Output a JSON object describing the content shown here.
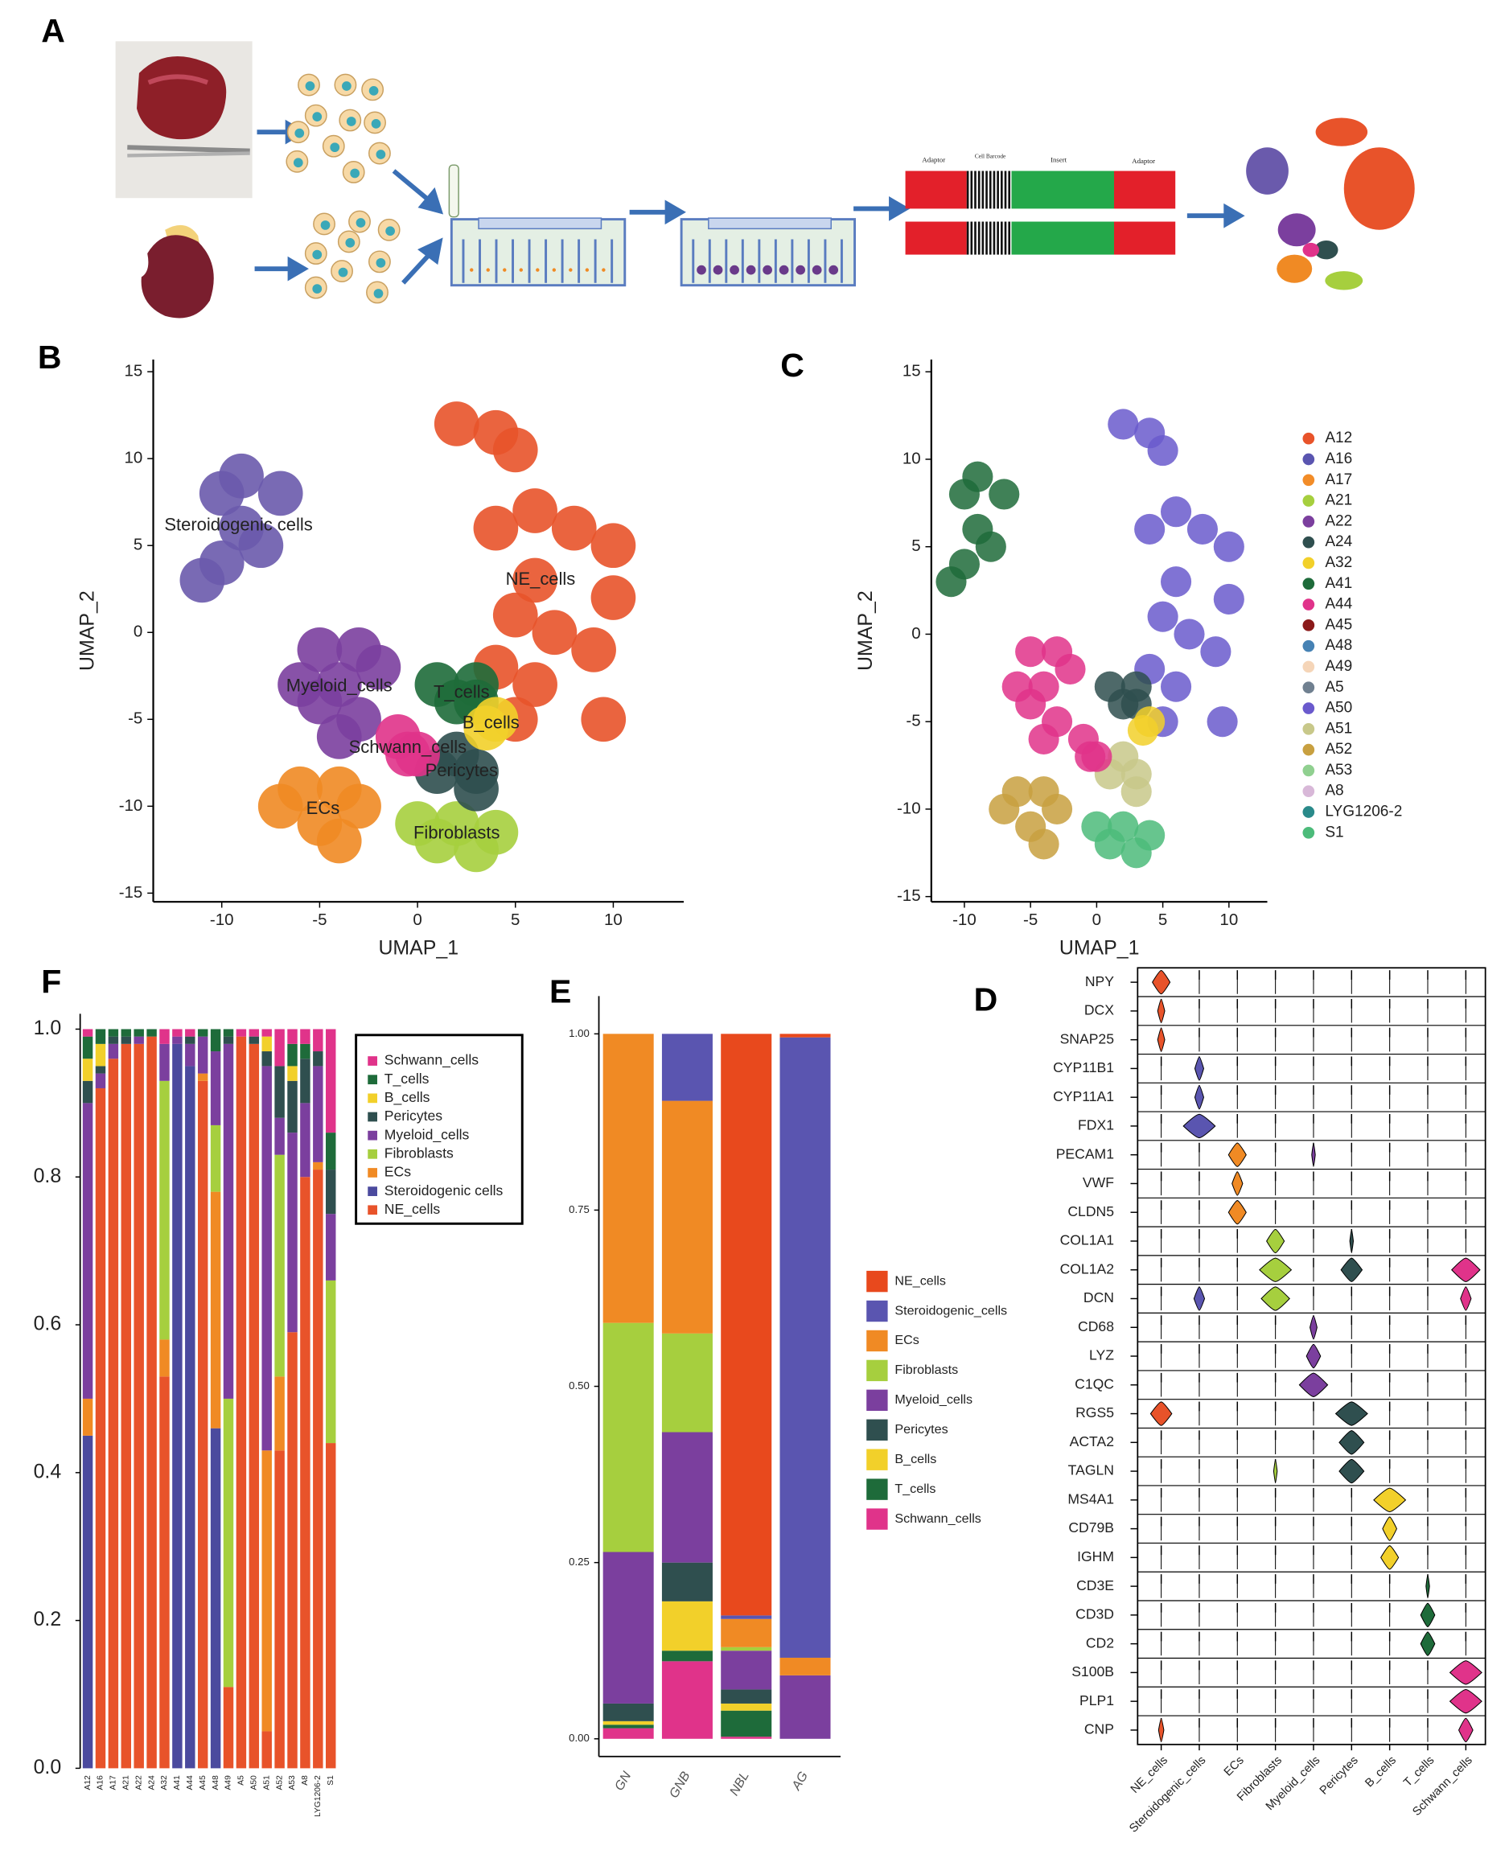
{
  "panel_labels": {
    "A": "A",
    "B": "B",
    "C": "C",
    "D": "D",
    "E": "E",
    "F": "F"
  },
  "schematic": {
    "labels": [
      "Adaptor",
      "Cell Barcode",
      "Insert",
      "Adaptor"
    ]
  },
  "chart_data": [
    {
      "type": "scatter",
      "xlabel": "UMAP_1",
      "ylabel": "UMAP_2",
      "xlim": [
        -13.5,
        13.6
      ],
      "ylim": [
        -15.5,
        15.7
      ],
      "xticks": [
        -10,
        -5,
        0,
        5,
        10
      ],
      "yticks": [
        -15,
        -10,
        -5,
        0,
        5,
        10,
        15
      ],
      "series": [
        {
          "name": "NE_cells",
          "color": "#e8532a",
          "x": [
            2,
            4,
            5,
            4,
            6,
            8,
            10,
            6,
            5,
            7,
            4,
            6,
            9,
            10,
            5,
            9.5
          ],
          "y": [
            12,
            11.5,
            10.5,
            6,
            7,
            6,
            5,
            3,
            1,
            0,
            -2,
            -3,
            -1,
            2,
            -5,
            -5
          ]
        },
        {
          "name": "Steroidogenic cells",
          "color": "#6a5aac",
          "x": [
            -10,
            -9,
            -10,
            -11,
            -8,
            -7,
            -9
          ],
          "y": [
            8,
            6,
            4,
            3,
            5,
            8,
            9
          ]
        },
        {
          "name": "Myeloid_cells",
          "color": "#7b3f9e",
          "x": [
            -5,
            -3,
            -2,
            -4,
            -5,
            -3,
            -4,
            -6
          ],
          "y": [
            -1,
            -1,
            -2,
            -3,
            -4,
            -5,
            -6,
            -3
          ]
        },
        {
          "name": "ECs",
          "color": "#f08a24",
          "x": [
            -6,
            -4,
            -3,
            -5,
            -7,
            -4
          ],
          "y": [
            -9,
            -9,
            -10,
            -11,
            -10,
            -12
          ]
        },
        {
          "name": "Fibroblasts",
          "color": "#a6cf3e",
          "x": [
            0,
            2,
            4,
            3,
            1
          ],
          "y": [
            -11,
            -11,
            -11.5,
            -12.5,
            -12
          ]
        },
        {
          "name": "Pericytes",
          "color": "#2f4f4f",
          "x": [
            2,
            3,
            3,
            1
          ],
          "y": [
            -7,
            -8,
            -9,
            -8
          ]
        },
        {
          "name": "T_cells",
          "color": "#1e6b3a",
          "x": [
            1,
            2,
            3,
            3
          ],
          "y": [
            -3,
            -4,
            -3,
            -4
          ]
        },
        {
          "name": "B_cells",
          "color": "#f2d02a",
          "x": [
            4,
            3.5
          ],
          "y": [
            -5,
            -5.5
          ]
        },
        {
          "name": "Schwann_cells",
          "color": "#e0338a",
          "x": [
            -1,
            0,
            -0.5
          ],
          "y": [
            -6,
            -7,
            -7
          ]
        }
      ]
    },
    {
      "type": "scatter",
      "xlabel": "UMAP_1",
      "ylabel": "UMAP_2",
      "xlim": [
        -12.5,
        12.9
      ],
      "ylim": [
        -15.3,
        15.7
      ],
      "xticks": [
        -10,
        -5,
        0,
        5,
        10
      ],
      "yticks": [
        -15,
        -10,
        -5,
        0,
        5,
        10,
        15
      ],
      "legend": "right",
      "series": [
        {
          "name": "A12",
          "color": "#e8532a"
        },
        {
          "name": "A16",
          "color": "#5a55b0"
        },
        {
          "name": "A17",
          "color": "#f28c28"
        },
        {
          "name": "A21",
          "color": "#a6cf3e"
        },
        {
          "name": "A22",
          "color": "#7b3f9e"
        },
        {
          "name": "A24",
          "color": "#2f4f4f"
        },
        {
          "name": "A32",
          "color": "#f2d02a"
        },
        {
          "name": "A41",
          "color": "#1e6b3a"
        },
        {
          "name": "A44",
          "color": "#e0338a"
        },
        {
          "name": "A45",
          "color": "#8b1a1a"
        },
        {
          "name": "A48",
          "color": "#4682b4"
        },
        {
          "name": "A49",
          "color": "#f5d5b8"
        },
        {
          "name": "A5",
          "color": "#708090"
        },
        {
          "name": "A50",
          "color": "#6a5acd"
        },
        {
          "name": "A51",
          "color": "#c8c88a"
        },
        {
          "name": "A52",
          "color": "#c8a040"
        },
        {
          "name": "A53",
          "color": "#90d090"
        },
        {
          "name": "A8",
          "color": "#d8b8d8"
        },
        {
          "name": "LYG1206-2",
          "color": "#2a8a8a"
        },
        {
          "name": "S1",
          "color": "#4cbb7a"
        }
      ]
    },
    {
      "type": "stacked_bar",
      "categories": [
        "A12",
        "A16",
        "A17",
        "A21",
        "A22",
        "A24",
        "A32",
        "A41",
        "A44",
        "A45",
        "A48",
        "A49",
        "A5",
        "A50",
        "A51",
        "A52",
        "A53",
        "A8",
        "LYG1206-2",
        "S1"
      ],
      "ylim": [
        0,
        1
      ],
      "yticks": [
        {
          "value": 0,
          "label": "0.0"
        },
        0.2,
        0.4,
        0.6,
        0.8,
        {
          "value": 1,
          "label": "1.0"
        }
      ],
      "legend": "right",
      "series": [
        {
          "name": "NE_cells",
          "color": "#e8532a",
          "values": [
            0,
            0.92,
            0.96,
            0.98,
            0.98,
            0.99,
            0.53,
            0,
            0,
            0.93,
            0,
            0.11,
            0.99,
            0.98,
            0.05,
            0.43,
            0.59,
            0.8,
            0.81,
            0.44
          ]
        },
        {
          "name": "Steroidogenic cells",
          "color": "#4b4a9e",
          "values": [
            0.45,
            0,
            0,
            0,
            0,
            0,
            0,
            0.98,
            0.95,
            0,
            0.46,
            0,
            0,
            0,
            0,
            0,
            0,
            0,
            0,
            0
          ]
        },
        {
          "name": "ECs",
          "color": "#f08a24",
          "values": [
            0.05,
            0,
            0,
            0,
            0,
            0,
            0.05,
            0,
            0,
            0.01,
            0.32,
            0,
            0,
            0,
            0.38,
            0.1,
            0,
            0,
            0.01,
            0
          ]
        },
        {
          "name": "Fibroblasts",
          "color": "#a6cf3e",
          "values": [
            0,
            0,
            0,
            0,
            0,
            0,
            0.35,
            0,
            0,
            0,
            0.09,
            0.39,
            0,
            0,
            0,
            0.3,
            0,
            0,
            0,
            0.22
          ]
        },
        {
          "name": "Myeloid_cells",
          "color": "#7b3f9e",
          "values": [
            0.4,
            0.02,
            0.02,
            0,
            0.01,
            0,
            0.05,
            0.01,
            0.03,
            0.05,
            0.1,
            0.48,
            0,
            0,
            0.52,
            0.05,
            0.27,
            0.1,
            0.13,
            0.09
          ]
        },
        {
          "name": "Pericytes",
          "color": "#2f4f4f",
          "values": [
            0.03,
            0.01,
            0.01,
            0.01,
            0,
            0,
            0,
            0,
            0.01,
            0,
            0,
            0.01,
            0,
            0.01,
            0.02,
            0.07,
            0.07,
            0.06,
            0.02,
            0.06
          ]
        },
        {
          "name": "B_cells",
          "color": "#f2d02a",
          "values": [
            0.03,
            0.03,
            0,
            0,
            0,
            0,
            0,
            0,
            0,
            0,
            0,
            0,
            0,
            0,
            0.02,
            0,
            0.02,
            0,
            0,
            0
          ]
        },
        {
          "name": "T_cells",
          "color": "#1e6b3a",
          "values": [
            0.03,
            0.02,
            0.01,
            0.01,
            0.01,
            0.01,
            0,
            0,
            0,
            0.01,
            0.03,
            0.01,
            0,
            0,
            0,
            0,
            0.03,
            0.02,
            0,
            0.05
          ]
        },
        {
          "name": "Schwann_cells",
          "color": "#e0338a",
          "values": [
            0.01,
            0,
            0,
            0,
            0,
            0,
            0.02,
            0.01,
            0.01,
            0,
            0,
            0,
            0.01,
            0.01,
            0.01,
            0.05,
            0.02,
            0.02,
            0.03,
            0.14
          ]
        }
      ]
    },
    {
      "type": "stacked_bar",
      "categories": [
        "GN",
        "GNB",
        "NBL",
        "AG"
      ],
      "ylim": [
        0,
        1
      ],
      "yticks": [
        {
          "value": 0,
          "label": "0.00"
        },
        {
          "value": 0.25,
          "label": "0.25"
        },
        {
          "value": 0.5,
          "label": "0.50"
        },
        {
          "value": 0.75,
          "label": "0.75"
        },
        {
          "value": 1,
          "label": "1.00"
        }
      ],
      "legend": "right",
      "series": [
        {
          "name": "Schwann_cells",
          "color": "#e0338a",
          "values": [
            0.015,
            0.11,
            0.003,
            0
          ]
        },
        {
          "name": "T_cells",
          "color": "#1e6b3a",
          "values": [
            0.005,
            0.015,
            0.037,
            0
          ]
        },
        {
          "name": "B_cells",
          "color": "#f2d02a",
          "values": [
            0.005,
            0.07,
            0.01,
            0
          ]
        },
        {
          "name": "Pericytes",
          "color": "#2f4f4f",
          "values": [
            0.025,
            0.055,
            0.02,
            0
          ]
        },
        {
          "name": "Myeloid_cells",
          "color": "#7b3f9e",
          "values": [
            0.215,
            0.185,
            0.055,
            0.09
          ]
        },
        {
          "name": "Fibroblasts",
          "color": "#a6cf3e",
          "values": [
            0.325,
            0.14,
            0.005,
            0
          ]
        },
        {
          "name": "ECs",
          "color": "#f08a24",
          "values": [
            0.41,
            0.33,
            0.04,
            0.025
          ]
        },
        {
          "name": "Steroidogenic_cells",
          "color": "#5a55b0",
          "values": [
            0,
            0.095,
            0.005,
            0.88
          ]
        },
        {
          "name": "NE_cells",
          "color": "#e8491d",
          "values": [
            0,
            0,
            0.825,
            0.005
          ]
        }
      ]
    },
    {
      "type": "violin",
      "genes": [
        "NPY",
        "DCX",
        "SNAP25",
        "CYP11B1",
        "CYP11A1",
        "FDX1",
        "PECAM1",
        "VWF",
        "CLDN5",
        "COL1A1",
        "COL1A2",
        "DCN",
        "CD68",
        "LYZ",
        "C1QC",
        "RGS5",
        "ACTA2",
        "TAGLN",
        "MS4A1",
        "CD79B",
        "IGHM",
        "CD3E",
        "CD3D",
        "CD2",
        "S100B",
        "PLP1",
        "CNP"
      ],
      "categories": [
        "NE_cells",
        "Steroidogenic_cells",
        "ECs",
        "Fibroblasts",
        "Myeloid_cells",
        "Pericytes",
        "B_cells",
        "T_cells",
        "Schwann_cells"
      ],
      "colors": [
        "#e8532a",
        "#5a55b0",
        "#f08a24",
        "#a6cf3e",
        "#7b3f9e",
        "#2f4f4f",
        "#f2d02a",
        "#1e6b3a",
        "#e0338a"
      ],
      "values": [
        [
          0.5,
          0,
          0,
          0,
          0,
          0,
          0,
          0,
          0
        ],
        [
          0.2,
          0,
          0,
          0,
          0,
          0,
          0,
          0,
          0
        ],
        [
          0.2,
          0,
          0,
          0,
          0,
          0,
          0,
          0,
          0
        ],
        [
          0,
          0.25,
          0,
          0,
          0,
          0,
          0,
          0,
          0
        ],
        [
          0,
          0.25,
          0,
          0,
          0,
          0,
          0,
          0,
          0
        ],
        [
          0,
          0.9,
          0,
          0,
          0,
          0,
          0,
          0,
          0
        ],
        [
          0,
          0,
          0.5,
          0,
          0.1,
          0,
          0,
          0,
          0
        ],
        [
          0,
          0,
          0.3,
          0,
          0,
          0,
          0,
          0,
          0
        ],
        [
          0,
          0,
          0.5,
          0,
          0,
          0,
          0,
          0,
          0
        ],
        [
          0,
          0,
          0,
          0.5,
          0,
          0.1,
          0,
          0,
          0
        ],
        [
          0,
          0,
          0,
          0.9,
          0,
          0.6,
          0,
          0,
          0.8
        ],
        [
          0,
          0.3,
          0,
          0.8,
          0,
          0,
          0,
          0,
          0.3
        ],
        [
          0,
          0,
          0,
          0,
          0.2,
          0,
          0,
          0,
          0
        ],
        [
          0,
          0,
          0,
          0,
          0.4,
          0,
          0,
          0,
          0
        ],
        [
          0,
          0,
          0,
          0,
          0.8,
          0,
          0,
          0,
          0
        ],
        [
          0.6,
          0,
          0,
          0,
          0,
          0.9,
          0,
          0,
          0
        ],
        [
          0,
          0,
          0,
          0,
          0,
          0.7,
          0,
          0,
          0
        ],
        [
          0,
          0,
          0,
          0.1,
          0,
          0.7,
          0,
          0,
          0
        ],
        [
          0,
          0,
          0,
          0,
          0,
          0,
          0.9,
          0,
          0
        ],
        [
          0,
          0,
          0,
          0,
          0,
          0,
          0.4,
          0,
          0
        ],
        [
          0,
          0,
          0,
          0,
          0,
          0,
          0.5,
          0,
          0
        ],
        [
          0,
          0,
          0,
          0,
          0,
          0,
          0,
          0.1,
          0
        ],
        [
          0,
          0,
          0,
          0,
          0,
          0,
          0,
          0.4,
          0
        ],
        [
          0,
          0,
          0,
          0,
          0,
          0,
          0,
          0.4,
          0
        ],
        [
          0,
          0,
          0,
          0,
          0,
          0,
          0,
          0,
          0.9
        ],
        [
          0,
          0,
          0,
          0,
          0,
          0,
          0,
          0,
          0.9
        ],
        [
          0.15,
          0,
          0,
          0,
          0,
          0,
          0,
          0,
          0.4
        ]
      ]
    }
  ]
}
